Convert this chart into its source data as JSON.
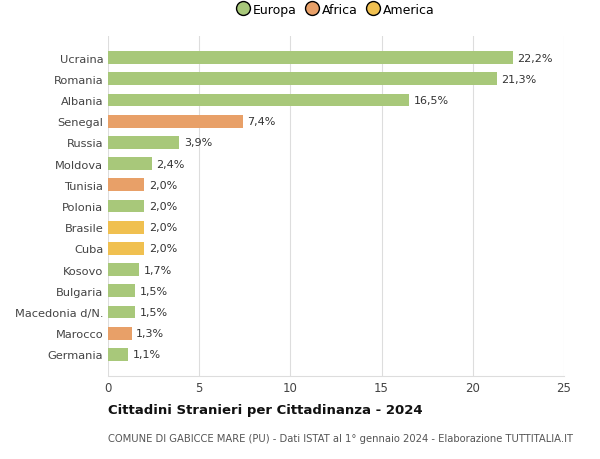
{
  "categories": [
    "Germania",
    "Marocco",
    "Macedonia d/N.",
    "Bulgaria",
    "Kosovo",
    "Cuba",
    "Brasile",
    "Polonia",
    "Tunisia",
    "Moldova",
    "Russia",
    "Senegal",
    "Albania",
    "Romania",
    "Ucraina"
  ],
  "values": [
    1.1,
    1.3,
    1.5,
    1.5,
    1.7,
    2.0,
    2.0,
    2.0,
    2.0,
    2.4,
    3.9,
    7.4,
    16.5,
    21.3,
    22.2
  ],
  "colors": [
    "#a8c87a",
    "#e8a068",
    "#a8c87a",
    "#a8c87a",
    "#a8c87a",
    "#f0c050",
    "#f0c050",
    "#a8c87a",
    "#e8a068",
    "#a8c87a",
    "#a8c87a",
    "#e8a068",
    "#a8c87a",
    "#a8c87a",
    "#a8c87a"
  ],
  "labels": [
    "1,1%",
    "1,3%",
    "1,5%",
    "1,5%",
    "1,7%",
    "2,0%",
    "2,0%",
    "2,0%",
    "2,0%",
    "2,4%",
    "3,9%",
    "7,4%",
    "16,5%",
    "21,3%",
    "22,2%"
  ],
  "legend_labels": [
    "Europa",
    "Africa",
    "America"
  ],
  "legend_colors": [
    "#a8c87a",
    "#e8a068",
    "#f0c050"
  ],
  "xlim": [
    0,
    25
  ],
  "xticks": [
    0,
    5,
    10,
    15,
    20,
    25
  ],
  "title_main": "Cittadini Stranieri per Cittadinanza - 2024",
  "title_sub": "COMUNE DI GABICCE MARE (PU) - Dati ISTAT al 1° gennaio 2024 - Elaborazione TUTTITALIA.IT",
  "background_color": "#ffffff",
  "grid_color": "#dddddd",
  "bar_height": 0.6
}
